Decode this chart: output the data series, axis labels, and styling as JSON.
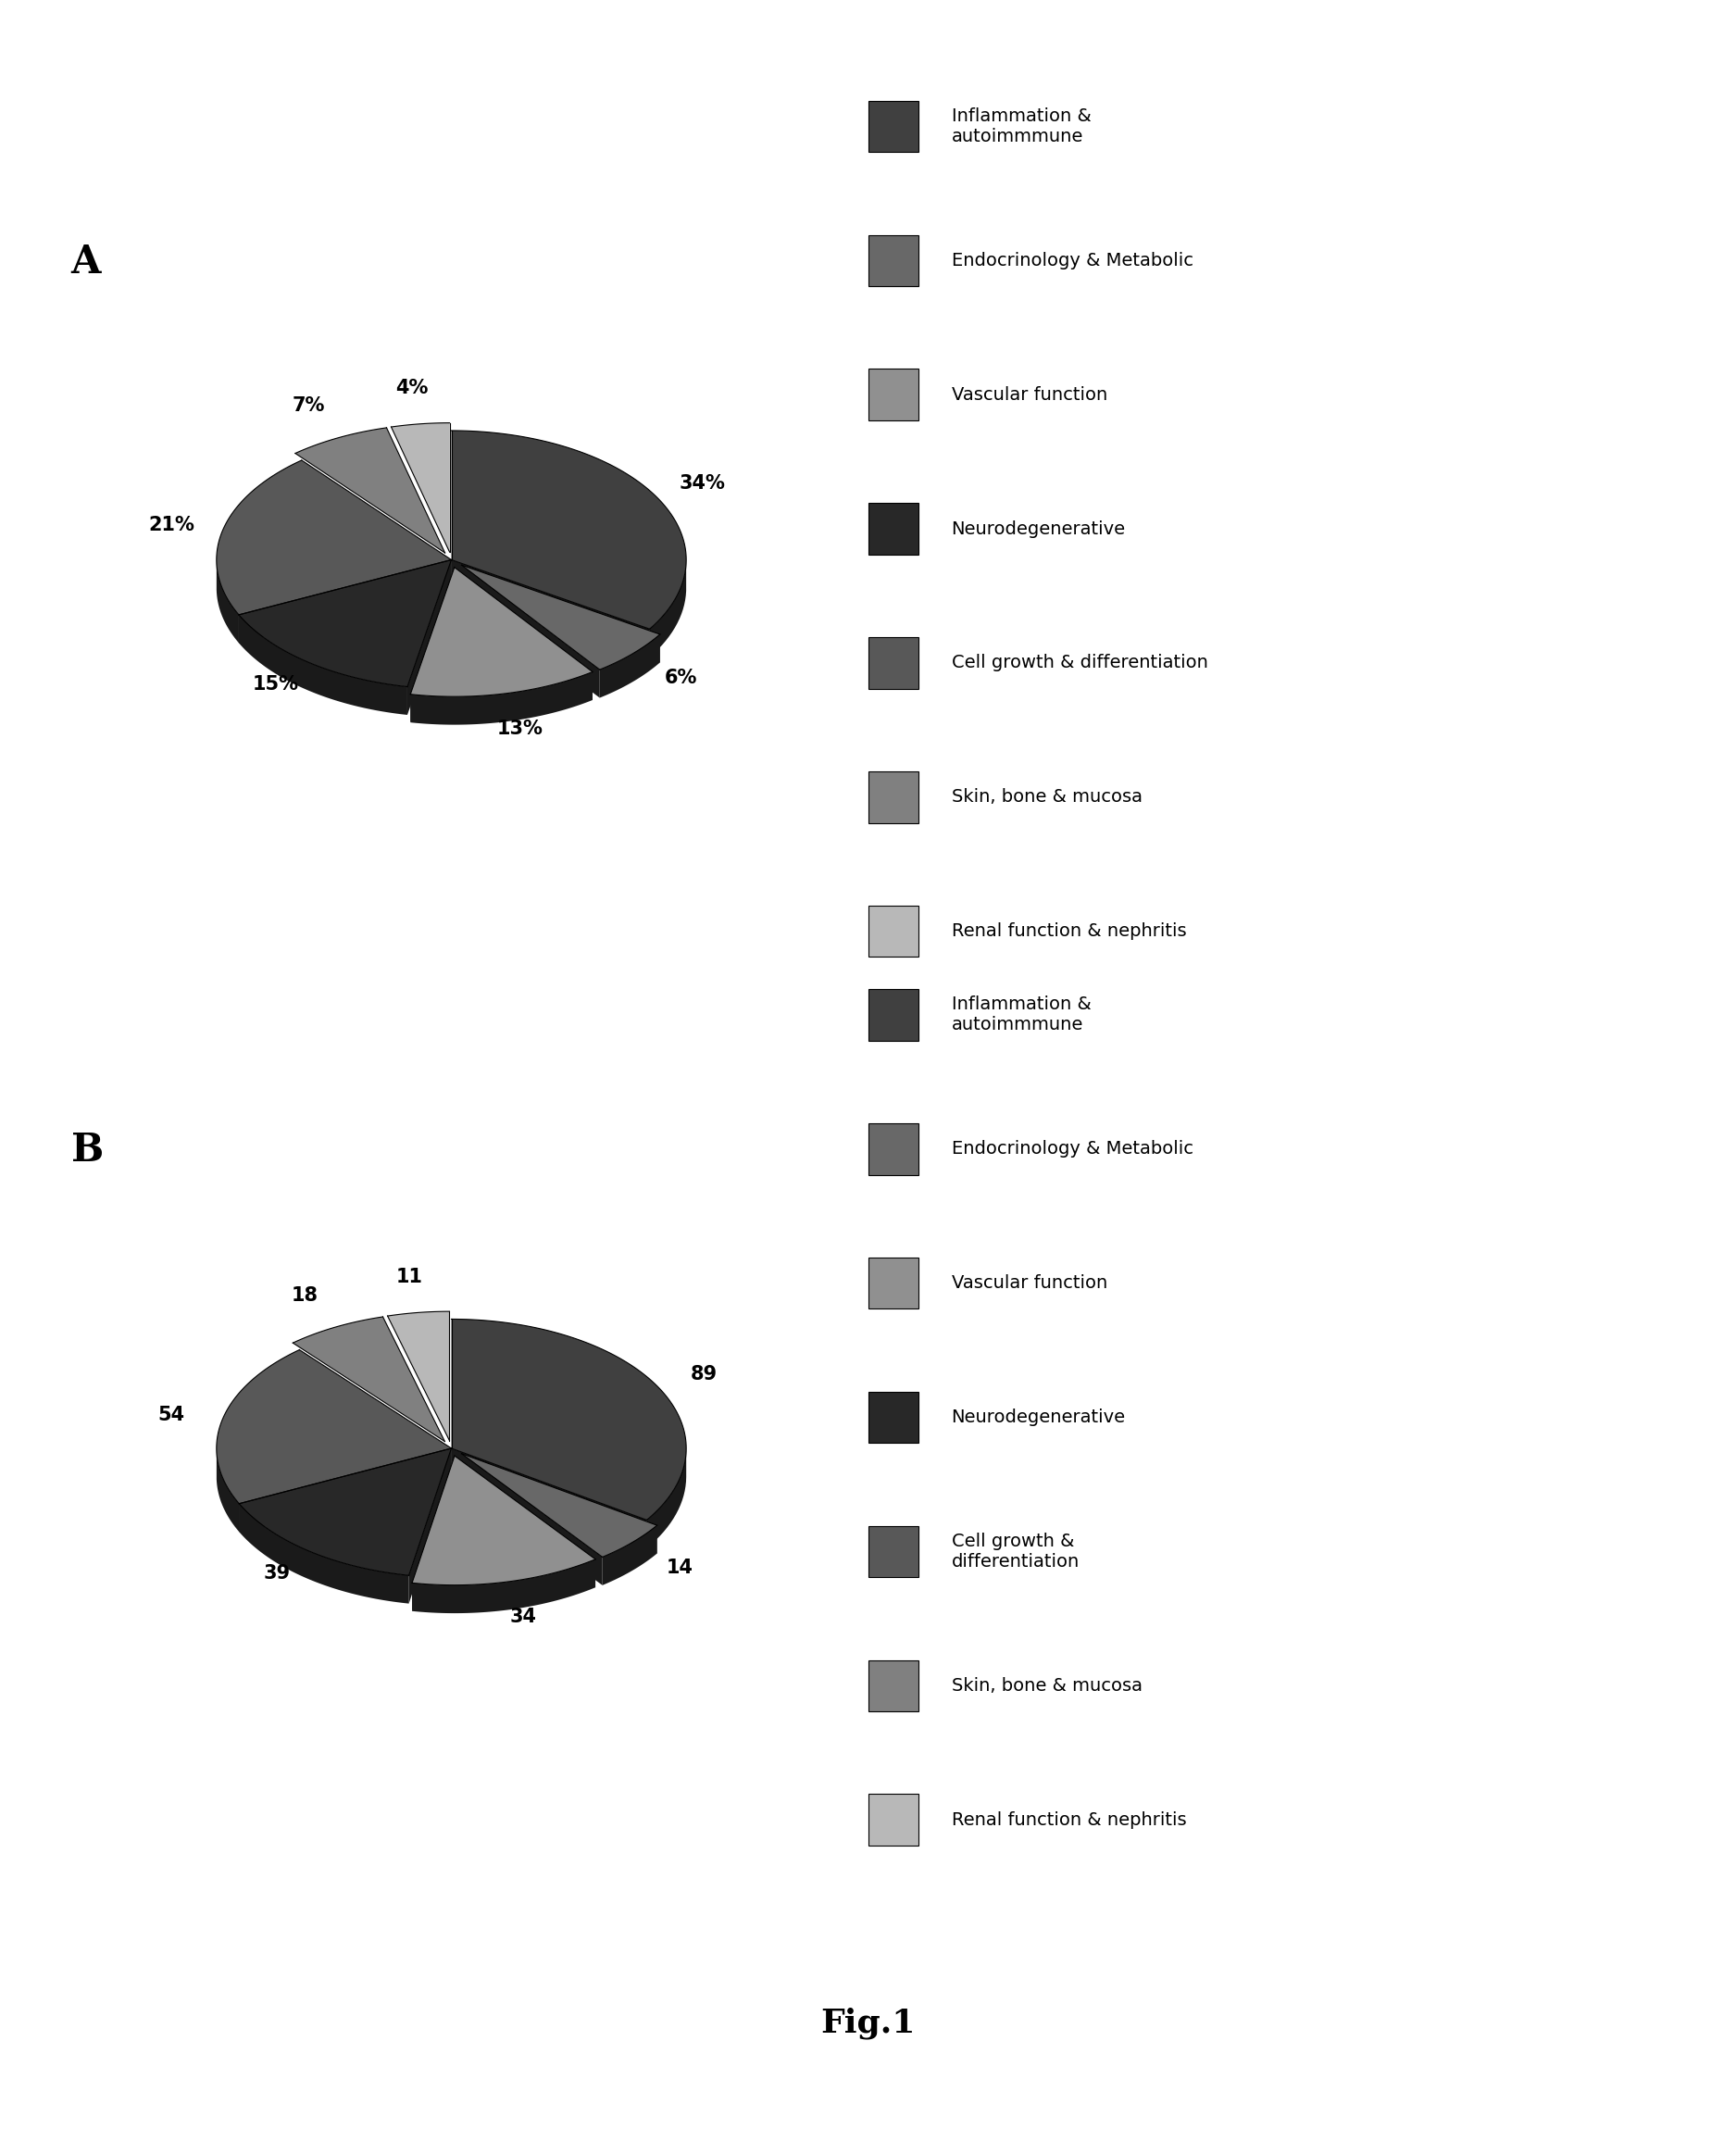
{
  "chart_A": {
    "label": "A",
    "values": [
      34,
      6,
      13,
      15,
      21,
      7,
      4
    ],
    "labels_pct": [
      "34%",
      "6%",
      "13%",
      "15%",
      "21%",
      "7%",
      "4%"
    ],
    "explode": [
      0.0,
      0.06,
      0.06,
      0.0,
      0.0,
      0.06,
      0.06
    ]
  },
  "chart_B": {
    "label": "B",
    "values": [
      89,
      14,
      34,
      39,
      54,
      18,
      11
    ],
    "labels_num": [
      "89",
      "14",
      "34",
      "39",
      "54",
      "18",
      "11"
    ],
    "explode": [
      0.0,
      0.06,
      0.06,
      0.0,
      0.0,
      0.06,
      0.06
    ]
  },
  "legend_labels_A": [
    "Inflammation &\nautoimmmune",
    "Endocrinology & Metabolic",
    "Vascular function",
    "Neurodegenerative",
    "Cell growth & differentiation",
    "Skin, bone & mucosa",
    "Renal function & nephritis"
  ],
  "legend_labels_B": [
    "Inflammation &\nautoimmmune",
    "Endocrinology & Metabolic",
    "Vascular function",
    "Neurodegenerative",
    "Cell growth &\ndifferentiation",
    "Skin, bone & mucosa",
    "Renal function & nephritis"
  ],
  "slice_colors": [
    "#404040",
    "#686868",
    "#909090",
    "#282828",
    "#585858",
    "#808080",
    "#b8b8b8"
  ],
  "slice_edge": "#000000",
  "depth_color": "#1a1a1a",
  "bg_color": "#ffffff",
  "fig_title": "Fig.1"
}
